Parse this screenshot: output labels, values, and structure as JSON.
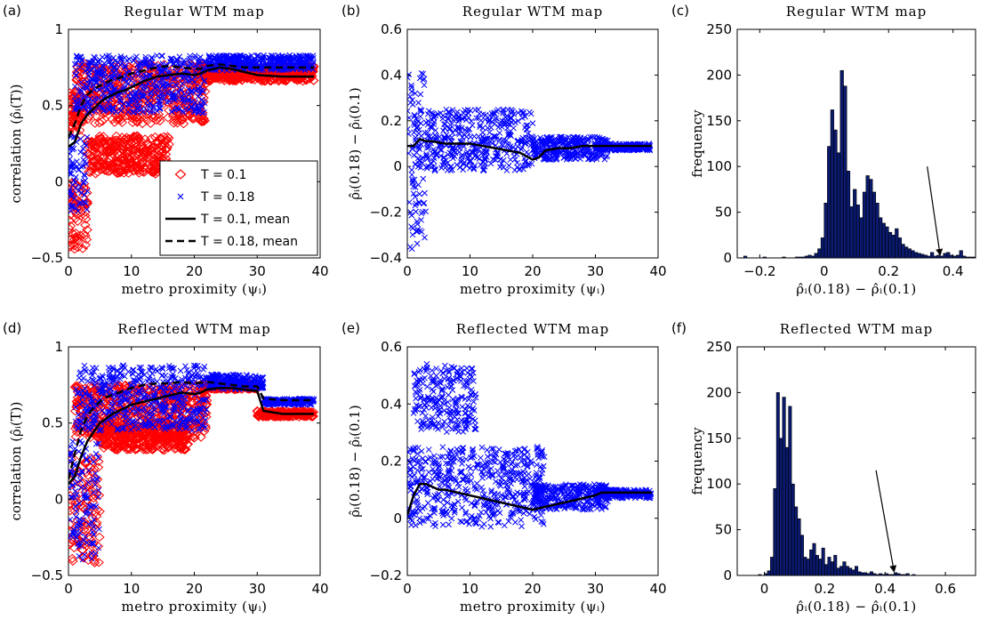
{
  "chart_data": [
    {
      "panel_label": "(a)",
      "type": "scatter",
      "title": "Regular WTM map",
      "xlabel": "metro proximity (ψᵢ)",
      "ylabel": "correlation (ρ̂ᵢ(T))",
      "xlim": [
        0,
        40
      ],
      "ylim": [
        -0.5,
        1
      ],
      "xticks": [
        0,
        10,
        20,
        30,
        40
      ],
      "yticks": [
        -0.5,
        0,
        0.5,
        1
      ],
      "ytick_labels": [
        "−0.5",
        "0",
        "0.5",
        "1"
      ],
      "legend_position": "lower-right",
      "legend": [
        {
          "label": "T = 0.1",
          "marker": "diamond",
          "color": "#ff0000"
        },
        {
          "label": "T = 0.18",
          "marker": "x",
          "color": "#0000ff"
        },
        {
          "label": "T = 0.1, mean",
          "line": "solid",
          "color": "#000000"
        },
        {
          "label": "T = 0.18, mean",
          "line": "dashed",
          "color": "#000000"
        }
      ],
      "series": [
        {
          "name": "T = 0.1",
          "marker": "diamond",
          "color": "#ff0000",
          "bands": [
            {
              "x": [
                0,
                2
              ],
              "y": [
                0.3,
                0.6
              ]
            },
            {
              "x": [
                0,
                3
              ],
              "y": [
                -0.45,
                0.0
              ]
            },
            {
              "x": [
                1,
                22
              ],
              "y": [
                0.38,
                0.78
              ]
            },
            {
              "x": [
                3,
                16
              ],
              "y": [
                0.05,
                0.3
              ]
            },
            {
              "x": [
                21,
                39
              ],
              "y": [
                0.66,
                0.76
              ]
            }
          ]
        },
        {
          "name": "T = 0.18",
          "marker": "x",
          "color": "#0000ff",
          "bands": [
            {
              "x": [
                0,
                3
              ],
              "y": [
                -0.2,
                0.3
              ]
            },
            {
              "x": [
                1,
                22
              ],
              "y": [
                0.45,
                0.83
              ]
            },
            {
              "x": [
                22,
                39
              ],
              "y": [
                0.73,
                0.83
              ]
            }
          ]
        },
        {
          "name": "T = 0.1, mean",
          "line": "solid",
          "color": "#000000",
          "x": [
            0,
            1,
            2,
            3,
            4,
            5,
            6,
            7,
            8,
            9,
            10,
            12,
            14,
            16,
            18,
            20,
            21,
            22,
            24,
            26,
            28,
            30,
            34,
            39
          ],
          "y": [
            0.23,
            0.26,
            0.38,
            0.44,
            0.48,
            0.52,
            0.55,
            0.57,
            0.59,
            0.6,
            0.62,
            0.66,
            0.69,
            0.7,
            0.71,
            0.7,
            0.71,
            0.73,
            0.75,
            0.74,
            0.72,
            0.7,
            0.69,
            0.69
          ]
        },
        {
          "name": "T = 0.18, mean",
          "line": "dashed",
          "color": "#000000",
          "x": [
            0,
            1,
            2,
            3,
            4,
            5,
            6,
            7,
            8,
            10,
            12,
            14,
            16,
            18,
            20,
            21,
            22,
            24,
            26,
            28,
            30,
            34,
            39
          ],
          "y": [
            0.29,
            0.38,
            0.5,
            0.57,
            0.61,
            0.63,
            0.65,
            0.67,
            0.68,
            0.71,
            0.73,
            0.75,
            0.76,
            0.75,
            0.74,
            0.74,
            0.76,
            0.77,
            0.76,
            0.75,
            0.75,
            0.75,
            0.75
          ]
        }
      ]
    },
    {
      "panel_label": "(b)",
      "type": "scatter",
      "title": "Regular WTM map",
      "xlabel": "metro proximity (ψᵢ)",
      "ylabel": "ρ̂ᵢ(0.18) − ρ̂ᵢ(0.1)",
      "xlim": [
        0,
        40
      ],
      "ylim": [
        -0.4,
        0.6
      ],
      "xticks": [
        0,
        10,
        20,
        30,
        40
      ],
      "yticks": [
        -0.4,
        -0.2,
        0,
        0.2,
        0.4,
        0.6
      ],
      "ytick_labels": [
        "−0.4",
        "−0.2",
        "0",
        "0.2",
        "0.4",
        "0.6"
      ],
      "series": [
        {
          "name": "difference",
          "marker": "x",
          "color": "#0000ff",
          "bands": [
            {
              "x": [
                0,
                3
              ],
              "y": [
                -0.37,
                0.41
              ]
            },
            {
              "x": [
                1,
                20
              ],
              "y": [
                -0.02,
                0.25
              ]
            },
            {
              "x": [
                20,
                32
              ],
              "y": [
                0.03,
                0.13
              ]
            },
            {
              "x": [
                30,
                39
              ],
              "y": [
                0.07,
                0.1
              ]
            }
          ]
        },
        {
          "name": "mean",
          "line": "solid",
          "color": "#000000",
          "x": [
            0,
            1,
            2,
            3,
            4,
            6,
            8,
            10,
            12,
            14,
            16,
            18,
            20,
            21,
            22,
            24,
            26,
            28,
            30,
            34,
            39
          ],
          "y": [
            0.09,
            0.09,
            0.12,
            0.11,
            0.11,
            0.1,
            0.1,
            0.1,
            0.09,
            0.08,
            0.07,
            0.06,
            0.03,
            0.04,
            0.07,
            0.08,
            0.08,
            0.09,
            0.09,
            0.09,
            0.09
          ]
        }
      ]
    },
    {
      "panel_label": "(c)",
      "type": "bar",
      "title": "Regular WTM map",
      "xlabel": "ρ̂ᵢ(0.18) − ρ̂ᵢ(0.1)",
      "ylabel": "frequency",
      "xlim": [
        -0.27,
        0.47
      ],
      "ylim": [
        0,
        250
      ],
      "xticks": [
        -0.2,
        0,
        0.2,
        0.4
      ],
      "xtick_labels": [
        "−0.2",
        "0",
        "0.2",
        "0.4"
      ],
      "yticks": [
        0,
        50,
        100,
        150,
        200,
        250
      ],
      "bin_start": -0.25,
      "bin_width": 0.01,
      "values": [
        2,
        0,
        0,
        0,
        0,
        0,
        1,
        0,
        0,
        0,
        0,
        0,
        1,
        0,
        0,
        0,
        1,
        1,
        1,
        2,
        3,
        2,
        5,
        10,
        22,
        60,
        122,
        162,
        140,
        115,
        205,
        188,
        95,
        56,
        75,
        58,
        44,
        72,
        90,
        86,
        72,
        60,
        44,
        38,
        34,
        28,
        25,
        32,
        22,
        15,
        12,
        10,
        8,
        6,
        5,
        4,
        3,
        2,
        6,
        2,
        3,
        2,
        5,
        6,
        3,
        2,
        3,
        8,
        2,
        1,
        1,
        1
      ],
      "annotation": {
        "type": "arrow",
        "from": [
          0.32,
          100
        ],
        "to": [
          0.36,
          3
        ]
      }
    },
    {
      "panel_label": "(d)",
      "type": "scatter",
      "title": "Reflected WTM map",
      "xlabel": "metro proximity (ψᵢ)",
      "ylabel": "correlation (ρ̂ᵢ(T))",
      "xlim": [
        0,
        40
      ],
      "ylim": [
        -0.5,
        1
      ],
      "xticks": [
        0,
        10,
        20,
        30,
        40
      ],
      "yticks": [
        -0.5,
        0,
        0.5,
        1
      ],
      "ytick_labels": [
        "−0.5",
        "0",
        "0.5",
        "1"
      ],
      "series": [
        {
          "name": "T = 0.1",
          "marker": "diamond",
          "color": "#ff0000",
          "bands": [
            {
              "x": [
                0,
                5
              ],
              "y": [
                -0.42,
                0.3
              ]
            },
            {
              "x": [
                1,
                22
              ],
              "y": [
                0.4,
                0.75
              ]
            },
            {
              "x": [
                5,
                19
              ],
              "y": [
                0.32,
                0.5
              ]
            },
            {
              "x": [
                21,
                30
              ],
              "y": [
                0.72,
                0.76
              ]
            },
            {
              "x": [
                30,
                39
              ],
              "y": [
                0.54,
                0.58
              ]
            }
          ]
        },
        {
          "name": "T = 0.18",
          "marker": "x",
          "color": "#0000ff",
          "bands": [
            {
              "x": [
                0,
                5
              ],
              "y": [
                -0.4,
                0.4
              ]
            },
            {
              "x": [
                1,
                22
              ],
              "y": [
                0.45,
                0.88
              ]
            },
            {
              "x": [
                22,
                31
              ],
              "y": [
                0.72,
                0.82
              ]
            },
            {
              "x": [
                31,
                39
              ],
              "y": [
                0.62,
                0.66
              ]
            }
          ]
        },
        {
          "name": "T = 0.1, mean",
          "line": "solid",
          "color": "#000000",
          "x": [
            0,
            1,
            2,
            3,
            4,
            5,
            6,
            7,
            8,
            10,
            12,
            14,
            16,
            18,
            20,
            21,
            22,
            24,
            26,
            28,
            30,
            31,
            34,
            39
          ],
          "y": [
            0.1,
            0.15,
            0.28,
            0.38,
            0.44,
            0.5,
            0.53,
            0.56,
            0.58,
            0.62,
            0.64,
            0.66,
            0.68,
            0.7,
            0.69,
            0.7,
            0.72,
            0.73,
            0.73,
            0.72,
            0.71,
            0.58,
            0.56,
            0.56
          ]
        },
        {
          "name": "T = 0.18, mean",
          "line": "dashed",
          "color": "#000000",
          "x": [
            0,
            1,
            2,
            3,
            4,
            5,
            6,
            8,
            10,
            12,
            14,
            16,
            18,
            20,
            22,
            24,
            26,
            28,
            30,
            31,
            34,
            39
          ],
          "y": [
            0.13,
            0.3,
            0.45,
            0.55,
            0.6,
            0.64,
            0.67,
            0.7,
            0.73,
            0.75,
            0.76,
            0.76,
            0.77,
            0.76,
            0.77,
            0.76,
            0.75,
            0.74,
            0.74,
            0.66,
            0.65,
            0.65
          ]
        }
      ]
    },
    {
      "panel_label": "(e)",
      "type": "scatter",
      "title": "Reflected WTM map",
      "xlabel": "metro proximity (ψᵢ)",
      "ylabel": "ρ̂ᵢ(0.18) − ρ̂ᵢ(0.1)",
      "xlim": [
        0,
        40
      ],
      "ylim": [
        -0.2,
        0.6
      ],
      "xticks": [
        0,
        10,
        20,
        30,
        40
      ],
      "yticks": [
        -0.2,
        0,
        0.2,
        0.4,
        0.6
      ],
      "ytick_labels": [
        "−0.2",
        "0",
        "0.2",
        "0.4",
        "0.6"
      ],
      "series": [
        {
          "name": "difference",
          "marker": "x",
          "color": "#0000ff",
          "bands": [
            {
              "x": [
                1,
                11
              ],
              "y": [
                0.3,
                0.54
              ]
            },
            {
              "x": [
                0,
                22
              ],
              "y": [
                -0.03,
                0.25
              ]
            },
            {
              "x": [
                20,
                32
              ],
              "y": [
                0.03,
                0.12
              ]
            },
            {
              "x": [
                30,
                39
              ],
              "y": [
                0.07,
                0.1
              ]
            }
          ]
        },
        {
          "name": "mean",
          "line": "solid",
          "color": "#000000",
          "x": [
            0,
            1,
            2,
            3,
            4,
            5,
            6,
            8,
            10,
            12,
            14,
            16,
            18,
            20,
            22,
            24,
            26,
            28,
            30,
            31,
            34,
            39
          ],
          "y": [
            0.01,
            0.08,
            0.12,
            0.12,
            0.11,
            0.1,
            0.1,
            0.09,
            0.08,
            0.07,
            0.06,
            0.05,
            0.04,
            0.03,
            0.04,
            0.05,
            0.06,
            0.07,
            0.08,
            0.09,
            0.09,
            0.09
          ]
        }
      ]
    },
    {
      "panel_label": "(f)",
      "type": "bar",
      "title": "Reflected WTM map",
      "xlabel": "ρ̂ᵢ(0.18) − ρ̂ᵢ(0.1)",
      "ylabel": "frequency",
      "xlim": [
        -0.09,
        0.7
      ],
      "ylim": [
        0,
        250
      ],
      "xticks": [
        0,
        0.2,
        0.4,
        0.6
      ],
      "yticks": [
        0,
        50,
        100,
        150,
        200,
        250
      ],
      "bin_start": -0.05,
      "bin_width": 0.01,
      "values": [
        0,
        0,
        0,
        1,
        0,
        2,
        5,
        20,
        95,
        200,
        150,
        195,
        140,
        185,
        100,
        75,
        62,
        44,
        20,
        18,
        28,
        35,
        22,
        18,
        30,
        12,
        20,
        15,
        22,
        8,
        10,
        15,
        10,
        8,
        6,
        10,
        4,
        3,
        3,
        2,
        4,
        2,
        1,
        2,
        1,
        2,
        1,
        1,
        3,
        2,
        1,
        1,
        2,
        0,
        1,
        0,
        0,
        0,
        0,
        0
      ],
      "annotation": {
        "type": "arrow",
        "from": [
          0.37,
          115
        ],
        "to": [
          0.43,
          4
        ]
      }
    }
  ]
}
